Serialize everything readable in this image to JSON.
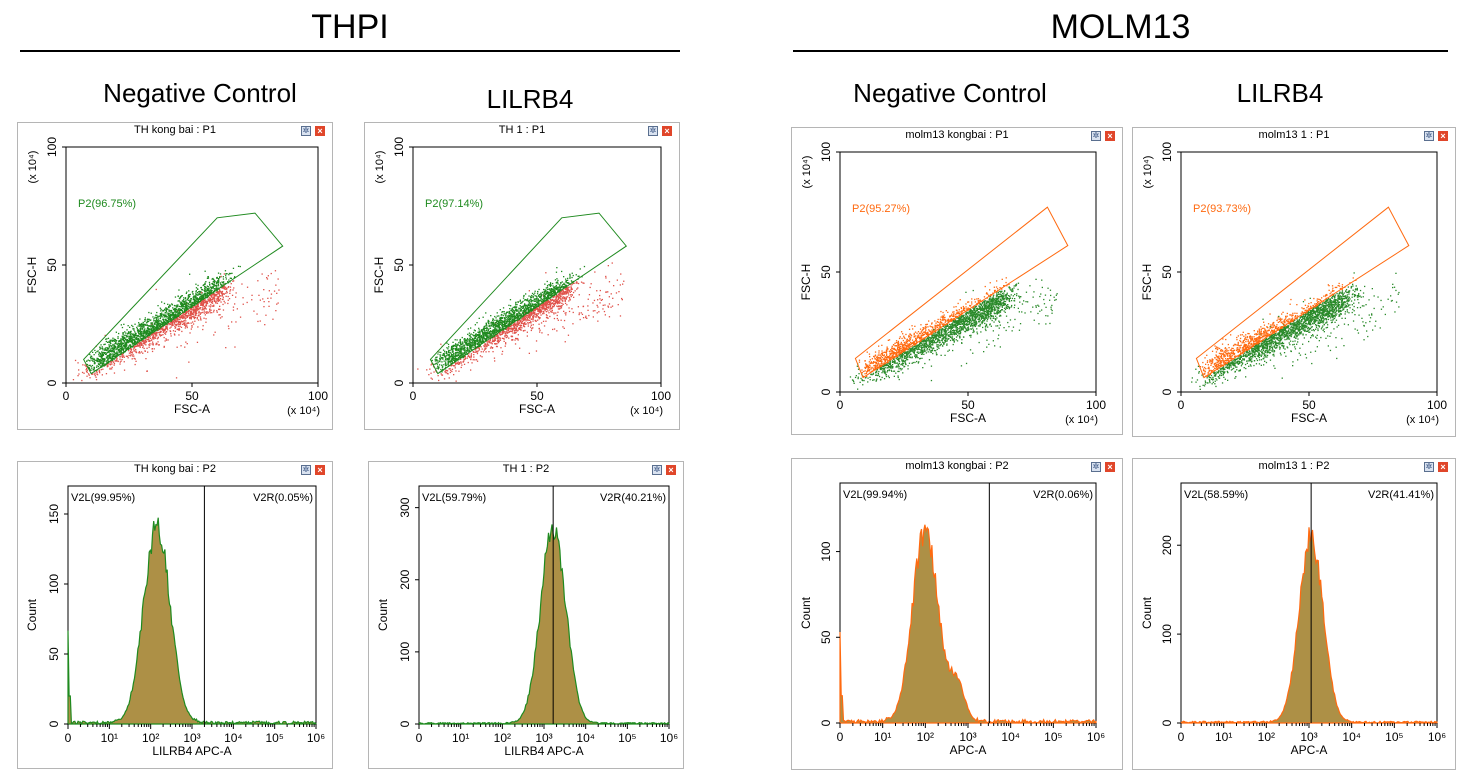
{
  "headers": [
    {
      "title": "THPI"
    },
    {
      "title": "MOLM13"
    }
  ],
  "subheaders": [
    "Negative Control",
    "LILRB4",
    "Negative Control",
    "LILRB4"
  ],
  "colors": {
    "green": "#1f8a1f",
    "red": "#e0524a",
    "orange": "#ff6a10",
    "dkgreen": "#2a8a2a",
    "hist_fill": "#a98a3c"
  },
  "icons": {
    "settings": "gear-icon",
    "close": "close-icon"
  },
  "chart_data": [
    {
      "type": "scatter",
      "title": "TH  kong bai : P1",
      "xlabel": "FSC-A",
      "ylabel": "FSC-H",
      "x_scale_label": "(x 10⁴)",
      "y_scale_label": "(x 10⁴)",
      "xlim": [
        0,
        100
      ],
      "ylim": [
        0,
        100
      ],
      "xticks": [
        "0",
        "50",
        "100"
      ],
      "yticks": [
        "0",
        "50",
        "100"
      ],
      "gate": {
        "name": "P2",
        "label": "P2(96.75%)",
        "percent": 96.75,
        "polygon": [
          [
            7,
            10
          ],
          [
            10,
            4
          ],
          [
            86,
            58
          ],
          [
            75,
            72
          ],
          [
            60,
            70
          ]
        ]
      },
      "in_gate_color": "green",
      "out_gate_color": "red"
    },
    {
      "type": "scatter",
      "title": "TH 1 : P1",
      "xlabel": "FSC-A",
      "ylabel": "FSC-H",
      "x_scale_label": "(x 10⁴)",
      "y_scale_label": "(x 10⁴)",
      "xlim": [
        0,
        100
      ],
      "ylim": [
        0,
        100
      ],
      "xticks": [
        "0",
        "50",
        "100"
      ],
      "yticks": [
        "0",
        "50",
        "100"
      ],
      "gate": {
        "name": "P2",
        "label": "P2(97.14%)",
        "percent": 97.14,
        "polygon": [
          [
            7,
            10
          ],
          [
            10,
            4
          ],
          [
            86,
            58
          ],
          [
            75,
            72
          ],
          [
            60,
            70
          ]
        ]
      },
      "in_gate_color": "green",
      "out_gate_color": "red"
    },
    {
      "type": "scatter",
      "title": "molm13 kongbai : P1",
      "xlabel": "FSC-A",
      "ylabel": "FSC-H",
      "x_scale_label": "(x 10⁴)",
      "y_scale_label": "(x 10⁴)",
      "xlim": [
        0,
        100
      ],
      "ylim": [
        0,
        100
      ],
      "xticks": [
        "0",
        "50",
        "100"
      ],
      "yticks": [
        "0",
        "50",
        "100"
      ],
      "gate": {
        "name": "P2",
        "label": "P2(95.27%)",
        "percent": 95.27,
        "polygon": [
          [
            6,
            14
          ],
          [
            9,
            6
          ],
          [
            89,
            61
          ],
          [
            81,
            77
          ]
        ]
      },
      "in_gate_color": "orange",
      "out_gate_color": "dkgreen"
    },
    {
      "type": "scatter",
      "title": "molm13 1 : P1",
      "xlabel": "FSC-A",
      "ylabel": "FSC-H",
      "x_scale_label": "(x 10⁴)",
      "y_scale_label": "(x 10⁴)",
      "xlim": [
        0,
        100
      ],
      "ylim": [
        0,
        100
      ],
      "xticks": [
        "0",
        "50",
        "100"
      ],
      "yticks": [
        "0",
        "50",
        "100"
      ],
      "gate": {
        "name": "P2",
        "label": "P2(93.73%)",
        "percent": 93.73,
        "polygon": [
          [
            6,
            14
          ],
          [
            9,
            6
          ],
          [
            89,
            61
          ],
          [
            81,
            77
          ]
        ]
      },
      "in_gate_color": "orange",
      "out_gate_color": "dkgreen"
    },
    {
      "type": "histogram",
      "title": "TH  kong bai : P2",
      "xlabel": "LILRB4 APC-A",
      "ylabel": "Count",
      "x_log": true,
      "xlim": [
        0,
        1000000
      ],
      "ylim": [
        0,
        170
      ],
      "yticks": [
        0,
        50,
        100,
        150
      ],
      "xticks": [
        "0",
        "10¹",
        "10²",
        "10³",
        "10⁴",
        "10⁵",
        "10⁶"
      ],
      "peak_log10": 2.15,
      "peak_count": 142,
      "spread": 0.32,
      "divider_log10": 3.3,
      "regions": [
        {
          "name": "V2L",
          "label": "V2L(99.95%)",
          "percent": 99.95
        },
        {
          "name": "V2R",
          "label": "V2R(0.05%)",
          "percent": 0.05
        }
      ],
      "line_color": "green"
    },
    {
      "type": "histogram",
      "title": "TH 1 : P2",
      "xlabel": "LILRB4 APC-A",
      "ylabel": "Count",
      "x_log": true,
      "xlim": [
        0,
        1000000
      ],
      "ylim": [
        0,
        330
      ],
      "yticks": [
        0,
        100,
        200,
        300
      ],
      "xticks": [
        "0",
        "10¹",
        "10²",
        "10³",
        "10⁴",
        "10⁵",
        "10⁶"
      ],
      "peak_log10": 3.22,
      "peak_count": 275,
      "spread": 0.3,
      "divider_log10": 3.22,
      "regions": [
        {
          "name": "V2L",
          "label": "V2L(59.79%)",
          "percent": 59.79
        },
        {
          "name": "V2R",
          "label": "V2R(40.21%)",
          "percent": 40.21
        }
      ],
      "line_color": "green"
    },
    {
      "type": "histogram",
      "title": "molm13 kongbai : P2",
      "xlabel": "APC-A",
      "ylabel": "Count",
      "x_log": true,
      "xlim": [
        0,
        1000000
      ],
      "ylim": [
        0,
        140
      ],
      "yticks": [
        0,
        50,
        100
      ],
      "xticks": [
        "0",
        "10¹",
        "10²",
        "10³",
        "10⁴",
        "10⁵",
        "10⁶"
      ],
      "peak_log10": 2.0,
      "peak_count": 113,
      "spread": 0.3,
      "divider_log10": 3.5,
      "regions": [
        {
          "name": "V2L",
          "label": "V2L(99.94%)",
          "percent": 99.94
        },
        {
          "name": "V2R",
          "label": "V2R(0.06%)",
          "percent": 0.06
        }
      ],
      "line_color": "orange"
    },
    {
      "type": "histogram",
      "title": "molm13 1 : P2",
      "xlabel": "APC-A",
      "ylabel": "Count",
      "x_log": true,
      "xlim": [
        0,
        1000000
      ],
      "ylim": [
        0,
        270
      ],
      "yticks": [
        0,
        100,
        200
      ],
      "xticks": [
        "0",
        "10¹",
        "10²",
        "10³",
        "10⁴",
        "10⁵",
        "10⁶"
      ],
      "peak_log10": 3.05,
      "peak_count": 210,
      "spread": 0.28,
      "divider_log10": 3.05,
      "regions": [
        {
          "name": "V2L",
          "label": "V2L(58.59%)",
          "percent": 58.59
        },
        {
          "name": "V2R",
          "label": "V2R(41.41%)",
          "percent": 41.41
        }
      ],
      "line_color": "orange"
    }
  ]
}
